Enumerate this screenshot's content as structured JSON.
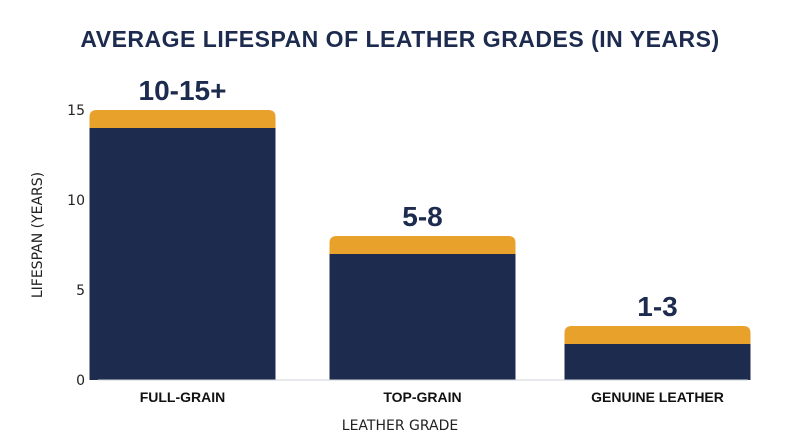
{
  "chart_data": {
    "type": "bar",
    "title": "AVERAGE LIFESPAN OF LEATHER GRADES (IN YEARS)",
    "xlabel": "LEATHER GRADE",
    "ylabel": "LIFESPAN (YEARS)",
    "categories": [
      "FULL-GRAIN",
      "TOP-GRAIN",
      "GENUINE LEATHER"
    ],
    "series": [
      {
        "values": [
          14,
          7,
          2
        ]
      },
      {
        "values": [
          1,
          1,
          1
        ]
      }
    ],
    "data_labels": [
      "10-15+",
      "5-8",
      "1-3"
    ],
    "yticks": [
      0,
      5,
      10,
      15
    ],
    "ylim": [
      0,
      16.5
    ],
    "stacked": true,
    "grid": false,
    "colors": {
      "base": "#1c2b4e",
      "top": "#e8a22c"
    }
  }
}
